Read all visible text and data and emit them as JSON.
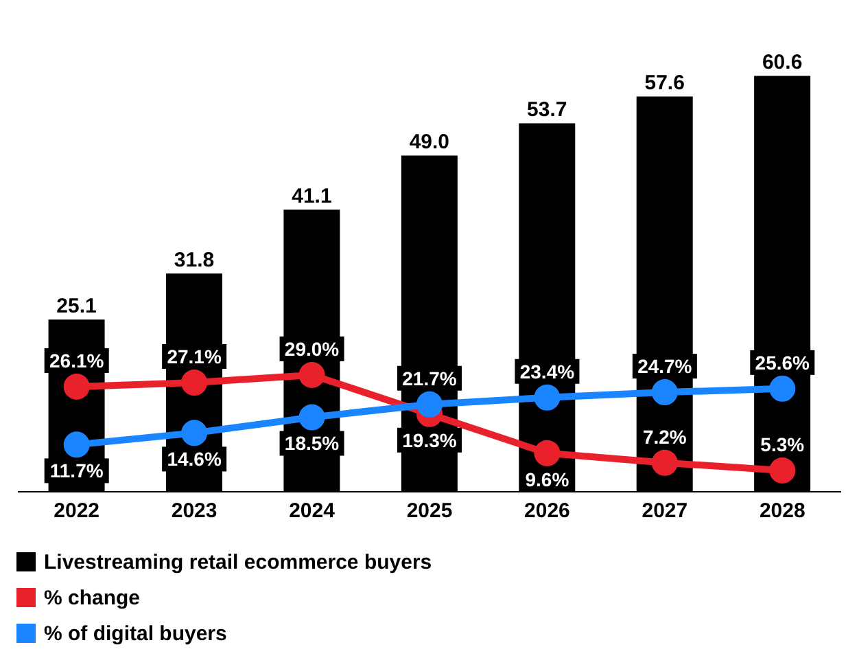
{
  "chart_data": {
    "type": "bar",
    "categories": [
      "2022",
      "2023",
      "2024",
      "2025",
      "2026",
      "2027",
      "2028"
    ],
    "series": [
      {
        "name": "Livestreaming retail ecommerce buyers",
        "color": "#000000",
        "values": [
          25.1,
          31.8,
          41.1,
          49.0,
          53.7,
          57.6,
          60.6
        ],
        "value_labels": [
          "25.1",
          "31.8",
          "41.1",
          "49.0",
          "53.7",
          "57.6",
          "60.6"
        ]
      },
      {
        "name": "% change",
        "type": "line",
        "axis": "y2",
        "color": "#e8212b",
        "values": [
          26.1,
          27.1,
          29.0,
          19.3,
          9.6,
          7.2,
          5.3
        ],
        "value_labels": [
          "26.1%",
          "27.1%",
          "29.0%",
          "19.3%",
          "9.6%",
          "7.2%",
          "5.3%"
        ]
      },
      {
        "name": "% of digital buyers",
        "type": "line",
        "axis": "y2",
        "color": "#1a85ff",
        "values": [
          11.7,
          14.6,
          18.5,
          21.7,
          23.4,
          24.7,
          25.6
        ],
        "value_labels": [
          "11.7%",
          "14.6%",
          "18.5%",
          "21.7%",
          "23.4%",
          "24.7%",
          "25.6%"
        ]
      }
    ],
    "legend": "bottom",
    "marker": "circle",
    "line_style": "solid",
    "grid": false
  }
}
